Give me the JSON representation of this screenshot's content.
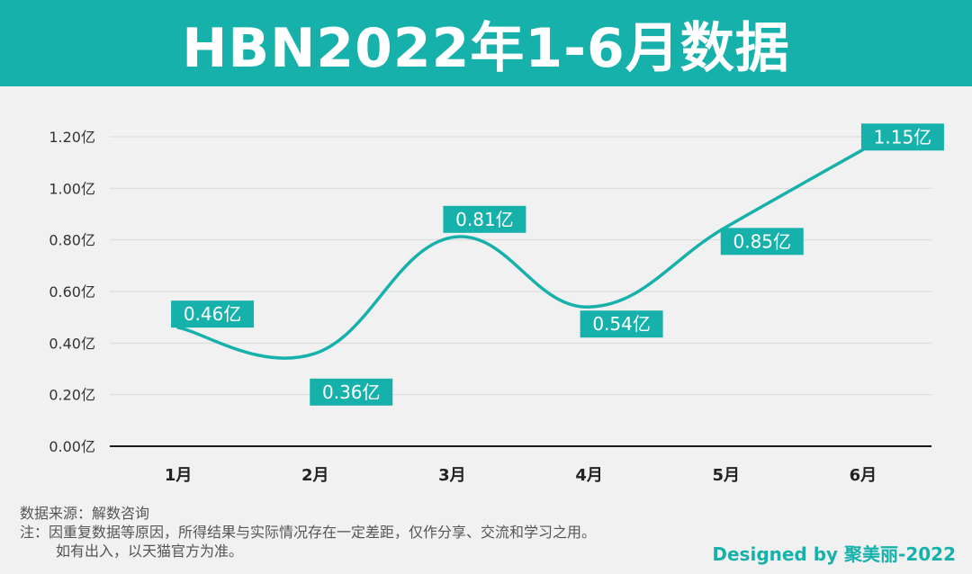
{
  "title": "HBN2022年1-6月数据",
  "chart_data": {
    "type": "line",
    "categories": [
      "1月",
      "2月",
      "3月",
      "4月",
      "5月",
      "6月"
    ],
    "values": [
      0.46,
      0.36,
      0.81,
      0.54,
      0.85,
      1.15
    ],
    "data_labels": [
      "0.46亿",
      "0.36亿",
      "0.81亿",
      "0.54亿",
      "0.85亿",
      "1.15亿"
    ],
    "y_ticks": [
      "0.00亿",
      "0.20亿",
      "0.40亿",
      "0.60亿",
      "0.80亿",
      "1.00亿",
      "1.20亿"
    ],
    "ylim": [
      0,
      1.2
    ],
    "grid": true,
    "line_color": "#17b1ab"
  },
  "footer": {
    "source": "数据来源：解数咨询",
    "note_line1": "注：因重复数据等原因，所得结果与实际情况存在一定差距，仅作分享、交流和学习之用。",
    "note_line2": "如有出入，以天猫官方为准。"
  },
  "credit": "Designed by 聚美丽-2022"
}
